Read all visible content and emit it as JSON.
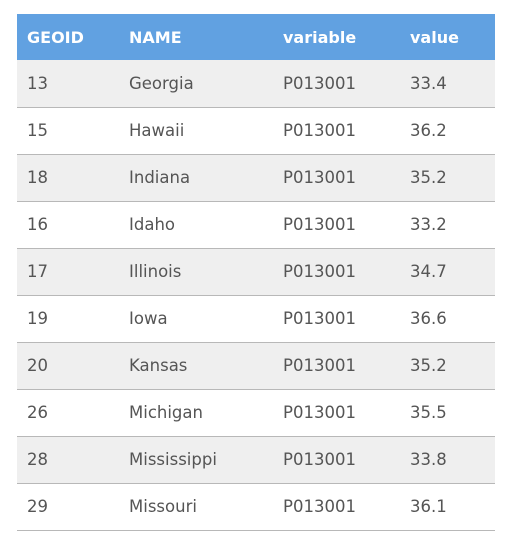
{
  "table": {
    "headers": [
      "GEOID",
      "NAME",
      "variable",
      "value"
    ],
    "rows": [
      [
        "13",
        "Georgia",
        "P013001",
        "33.4"
      ],
      [
        "15",
        "Hawaii",
        "P013001",
        "36.2"
      ],
      [
        "18",
        "Indiana",
        "P013001",
        "35.2"
      ],
      [
        "16",
        "Idaho",
        "P013001",
        "33.2"
      ],
      [
        "17",
        "Illinois",
        "P013001",
        "34.7"
      ],
      [
        "19",
        "Iowa",
        "P013001",
        "36.6"
      ],
      [
        "20",
        "Kansas",
        "P013001",
        "35.2"
      ],
      [
        "26",
        "Michigan",
        "P013001",
        "35.5"
      ],
      [
        "28",
        "Mississippi",
        "P013001",
        "33.8"
      ],
      [
        "29",
        "Missouri",
        "P013001",
        "36.1"
      ]
    ]
  },
  "colors": {
    "header_bg": "#61a1e1",
    "header_text": "#ffffff",
    "row_odd_bg": "#efefef",
    "row_even_bg": "#ffffff",
    "cell_text": "#555555",
    "row_border": "#b8b8b8"
  }
}
